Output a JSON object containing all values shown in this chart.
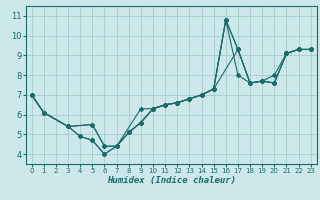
{
  "title": "",
  "xlabel": "Humidex (Indice chaleur)",
  "ylabel": "",
  "xlim": [
    -0.5,
    23.5
  ],
  "ylim": [
    3.5,
    11.5
  ],
  "xticks": [
    0,
    1,
    2,
    3,
    4,
    5,
    6,
    7,
    8,
    9,
    10,
    11,
    12,
    13,
    14,
    15,
    16,
    17,
    18,
    19,
    20,
    21,
    22,
    23
  ],
  "yticks": [
    4,
    5,
    6,
    7,
    8,
    9,
    10,
    11
  ],
  "bg_color": "#cce8ea",
  "grid_color": "#aacfd2",
  "line_color": "#1a6b6b",
  "series": [
    {
      "x": [
        0,
        1,
        3,
        4,
        5,
        6,
        7,
        8,
        9,
        10,
        11,
        12,
        13,
        14,
        15,
        16,
        17,
        18,
        19,
        20,
        21,
        22,
        23
      ],
      "y": [
        7.0,
        6.1,
        5.4,
        4.9,
        4.7,
        4.0,
        4.4,
        5.1,
        5.6,
        6.3,
        6.5,
        6.6,
        6.8,
        7.0,
        7.3,
        10.8,
        9.3,
        7.6,
        7.7,
        8.0,
        9.1,
        9.3,
        9.3
      ]
    },
    {
      "x": [
        0,
        1,
        3,
        4,
        5,
        6,
        7,
        8,
        9,
        10,
        11,
        12,
        13,
        14,
        15,
        16,
        17,
        18,
        19,
        20,
        21,
        22,
        23
      ],
      "y": [
        7.0,
        6.1,
        5.4,
        4.9,
        4.7,
        4.0,
        4.4,
        5.1,
        5.6,
        6.3,
        6.5,
        6.6,
        6.8,
        7.0,
        7.3,
        10.8,
        8.0,
        7.6,
        7.7,
        7.6,
        9.1,
        9.3,
        9.3
      ]
    },
    {
      "x": [
        0,
        1,
        3,
        5,
        6,
        7,
        9,
        10,
        11,
        12,
        13,
        14,
        15,
        16,
        17,
        18,
        19,
        20,
        21,
        22,
        23
      ],
      "y": [
        7.0,
        6.1,
        5.4,
        5.5,
        4.4,
        4.4,
        6.3,
        6.3,
        6.5,
        6.6,
        6.8,
        7.0,
        7.3,
        10.8,
        9.3,
        7.6,
        7.7,
        7.6,
        9.1,
        9.3,
        9.3
      ]
    },
    {
      "x": [
        0,
        1,
        3,
        5,
        6,
        7,
        8,
        9,
        10,
        11,
        12,
        13,
        14,
        15,
        17,
        18,
        19,
        20,
        21,
        22,
        23
      ],
      "y": [
        7.0,
        6.1,
        5.4,
        5.5,
        4.4,
        4.4,
        5.1,
        5.6,
        6.3,
        6.5,
        6.6,
        6.8,
        7.0,
        7.3,
        9.3,
        7.6,
        7.7,
        7.6,
        9.1,
        9.3,
        9.3
      ]
    }
  ]
}
